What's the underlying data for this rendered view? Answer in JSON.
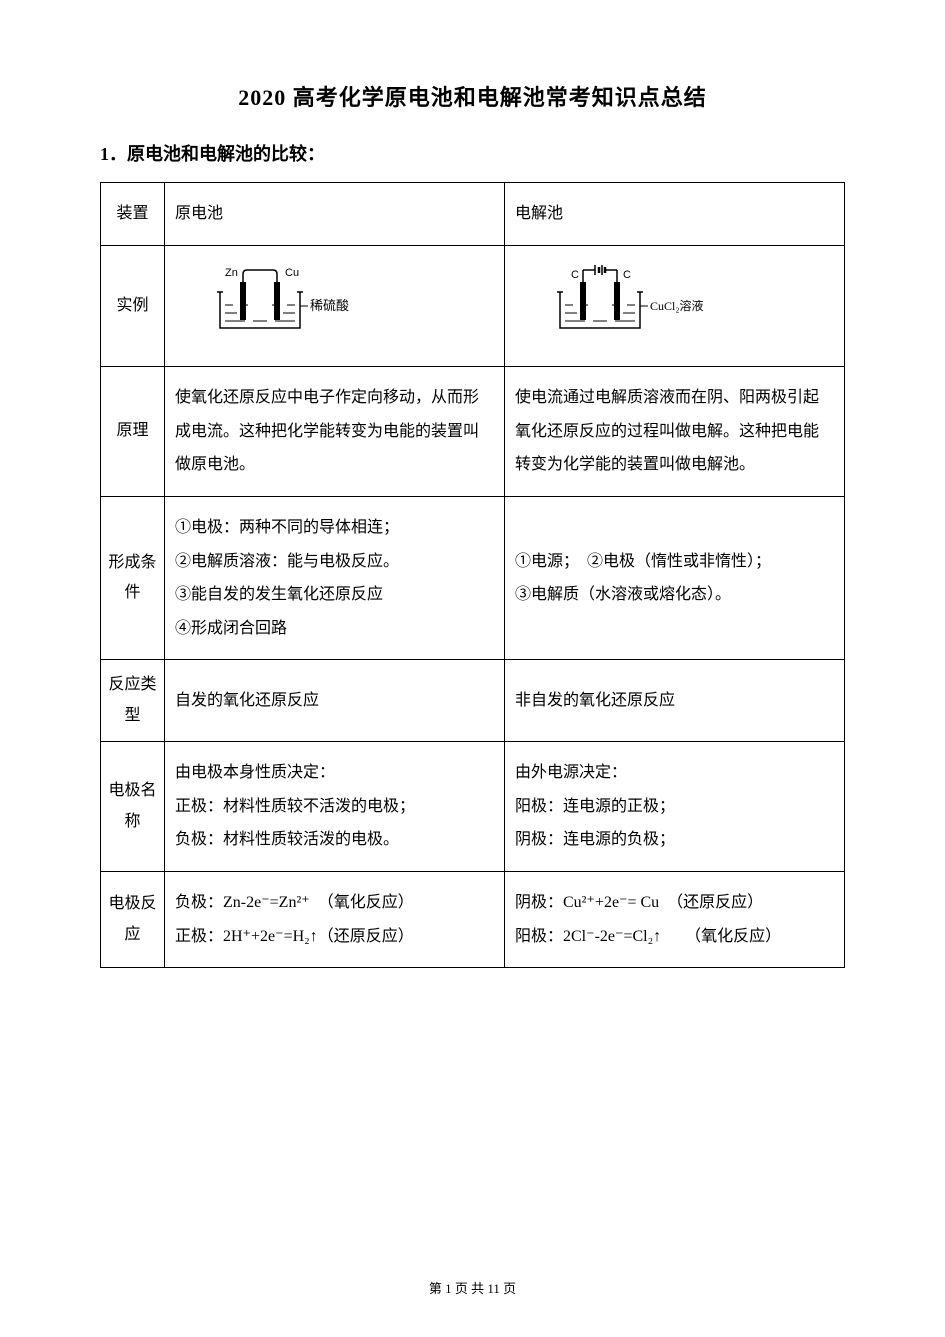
{
  "title": "2020 高考化学原电池和电解池常考知识点总结",
  "section_heading": "1．原电池和电解池的比较：",
  "table": {
    "header": {
      "col1": "装置",
      "col2": "原电池",
      "col3": "电解池"
    },
    "rows": {
      "example": {
        "label": "实例",
        "galvanic_diagram": {
          "left_label": "Zn",
          "right_label": "Cu",
          "solution_label": "稀硫酸",
          "beaker_stroke": "#000000",
          "beaker_fill": "#ffffff",
          "electrode_fill": "#000000"
        },
        "electrolytic_diagram": {
          "left_label": "C",
          "right_label": "C",
          "solution_label": "CuCl₂溶液",
          "beaker_stroke": "#000000",
          "beaker_fill": "#ffffff",
          "electrode_fill": "#000000"
        }
      },
      "principle": {
        "label": "原理",
        "galvanic": "使氧化还原反应中电子作定向移动，从而形成电流。这种把化学能转变为电能的装置叫做原电池。",
        "electrolytic": "使电流通过电解质溶液而在阴、阳两极引起氧化还原反应的过程叫做电解。这种把电能转变为化学能的装置叫做电解池。"
      },
      "conditions": {
        "label": "形成条件",
        "galvanic": "①电极：两种不同的导体相连；\n②电解质溶液：能与电极反应。\n③能自发的发生氧化还原反应\n④形成闭合回路",
        "electrolytic": "①电源；　②电极（惰性或非惰性）；\n③电解质（水溶液或熔化态）。"
      },
      "reaction_type": {
        "label": "反应类型",
        "galvanic": "自发的氧化还原反应",
        "electrolytic": "非自发的氧化还原反应"
      },
      "electrode_name": {
        "label": "电极名称",
        "galvanic": "由电极本身性质决定：\n正极：材料性质较不活泼的电极；\n负极：材料性质较活泼的电极。",
        "electrolytic": "由外电源决定：\n阳极：连电源的正极；\n阴极：连电源的负极；"
      },
      "electrode_reaction": {
        "label": "电极反应",
        "galvanic": "负极：Zn-2e⁻=Zn²⁺　（氧化反应）\n正极：2H⁺+2e⁻=H₂↑（还原反应）",
        "electrolytic": "阴极：Cu²⁺+2e⁻= Cu　（还原反应）\n阳极：2Cl⁻-2e⁻=Cl₂↑　　（氧化反应）"
      }
    }
  },
  "footer": {
    "prefix": "第 ",
    "current_page": "1",
    "middle": " 页 共 ",
    "total_pages": "11",
    "suffix": " 页"
  },
  "style": {
    "font_family": "SimSun",
    "body_font_size": 16,
    "title_font_size": 22,
    "heading_font_size": 18,
    "text_color": "#000000",
    "background_color": "#ffffff",
    "border_color": "#000000",
    "line_height": 2.1
  }
}
